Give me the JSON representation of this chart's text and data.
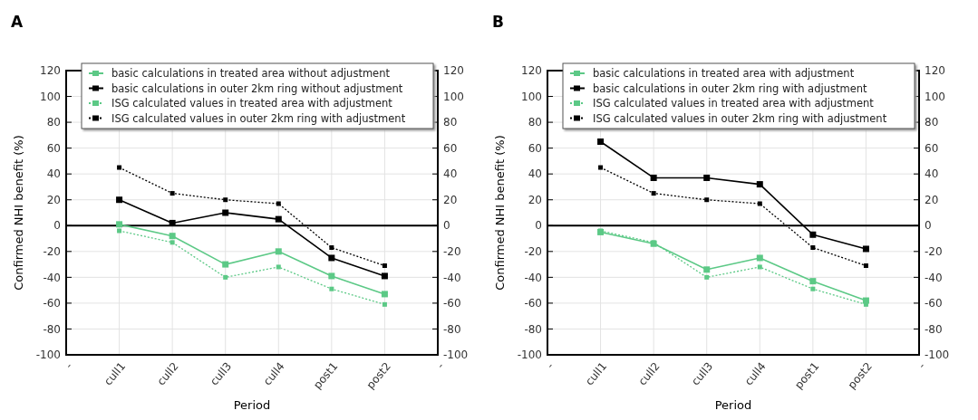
{
  "chart_data": [
    {
      "type": "line",
      "title": "A",
      "xlabel": "Period",
      "ylabel": "Confirmed NHI benefit (%)",
      "categories": [
        "-",
        "cull1",
        "cull2",
        "cull3",
        "cull4",
        "post1",
        "post2",
        "-"
      ],
      "ylim": [
        -100,
        120
      ],
      "yticks": [
        -100,
        -80,
        -60,
        -40,
        -20,
        0,
        20,
        40,
        60,
        80,
        100,
        120
      ],
      "y2lim": [
        -100,
        120
      ],
      "y2ticks": [
        -100,
        -80,
        -60,
        -40,
        -20,
        0,
        20,
        40,
        60,
        80,
        100,
        120
      ],
      "grid": true,
      "legend": "top",
      "marker": "square",
      "ref_lines": [
        {
          "axis": "y",
          "value": 0,
          "color": "#000000"
        }
      ],
      "series": [
        {
          "name": "basic calculations in treated area without adjustment",
          "color": "#5cc986",
          "line_style": "solid",
          "values": [
            null,
            1,
            -8,
            -30,
            -20,
            -39,
            -53,
            null
          ]
        },
        {
          "name": "basic calculations in outer 2km ring  without adjustment",
          "color": "#000000",
          "line_style": "solid",
          "values": [
            null,
            20,
            2,
            10,
            5,
            -25,
            -39,
            null
          ]
        },
        {
          "name": "ISG calculated values in treated area with adjustment",
          "color": "#5cc986",
          "line_style": "dotted",
          "values": [
            null,
            -4,
            -13,
            -40,
            -32,
            -49,
            -61,
            null
          ]
        },
        {
          "name": "ISG calculated values in outer 2km ring with adjustment",
          "color": "#000000",
          "line_style": "dotted",
          "values": [
            null,
            45,
            25,
            20,
            17,
            -17,
            -31,
            null
          ]
        }
      ]
    },
    {
      "type": "line",
      "title": "B",
      "xlabel": "Period",
      "ylabel": "Confirmed NHI benefit (%)",
      "categories": [
        "-",
        "cull1",
        "cull2",
        "cull3",
        "cull4",
        "post1",
        "post2",
        "-"
      ],
      "ylim": [
        -100,
        120
      ],
      "yticks": [
        -100,
        -80,
        -60,
        -40,
        -20,
        0,
        20,
        40,
        60,
        80,
        100,
        120
      ],
      "y2lim": [
        -100,
        120
      ],
      "y2ticks": [
        -100,
        -80,
        -60,
        -40,
        -20,
        0,
        20,
        40,
        60,
        80,
        100,
        120
      ],
      "grid": true,
      "legend": "top",
      "marker": "square",
      "ref_lines": [
        {
          "axis": "y",
          "value": 0,
          "color": "#000000"
        }
      ],
      "series": [
        {
          "name": "basic calculations in treated area with adjustment",
          "color": "#5cc986",
          "line_style": "solid",
          "values": [
            null,
            -5,
            -14,
            -34,
            -25,
            -43,
            -58,
            null
          ]
        },
        {
          "name": "basic calculations in outer 2km ring  with adjustment",
          "color": "#000000",
          "line_style": "solid",
          "values": [
            null,
            65,
            37,
            37,
            32,
            -7,
            -18,
            null
          ]
        },
        {
          "name": "ISG calculated values in treated area with adjustment",
          "color": "#5cc986",
          "line_style": "dotted",
          "values": [
            null,
            -4,
            -13,
            -40,
            -32,
            -49,
            -61,
            null
          ]
        },
        {
          "name": "ISG calculated values in outer 2km ring with adjustment",
          "color": "#000000",
          "line_style": "dotted",
          "values": [
            null,
            45,
            25,
            20,
            17,
            -17,
            -31,
            null
          ]
        }
      ]
    }
  ]
}
